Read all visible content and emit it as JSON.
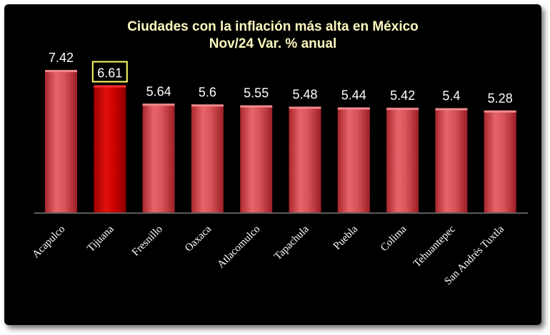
{
  "chart_data": {
    "type": "bar",
    "title": "Ciudades con la inflación más alta en México",
    "subtitle": "Nov/24 Var. %  anual",
    "categories": [
      "Acapulco",
      "Tijuana",
      "Fresnillo",
      "Oaxaca",
      "Atlacomulco",
      "Tapachula",
      "Puebla",
      "Colima",
      "Tehuantepec",
      "San Andrés Tuxtla"
    ],
    "values": [
      7.42,
      6.61,
      5.64,
      5.6,
      5.55,
      5.48,
      5.44,
      5.42,
      5.4,
      5.28
    ],
    "value_labels": [
      "7.42",
      "6.61",
      "5.64",
      "5.6",
      "5.55",
      "5.48",
      "5.44",
      "5.42",
      "5.4",
      "5.28"
    ],
    "highlight_index": 1,
    "ylim": [
      0,
      7.5
    ],
    "grid": false,
    "colors": {
      "bar": "#d9535a",
      "bar_highlight": "#cc0000",
      "highlight_box": "#ffff66",
      "title": "#fff9c0",
      "background": "#000000"
    }
  }
}
